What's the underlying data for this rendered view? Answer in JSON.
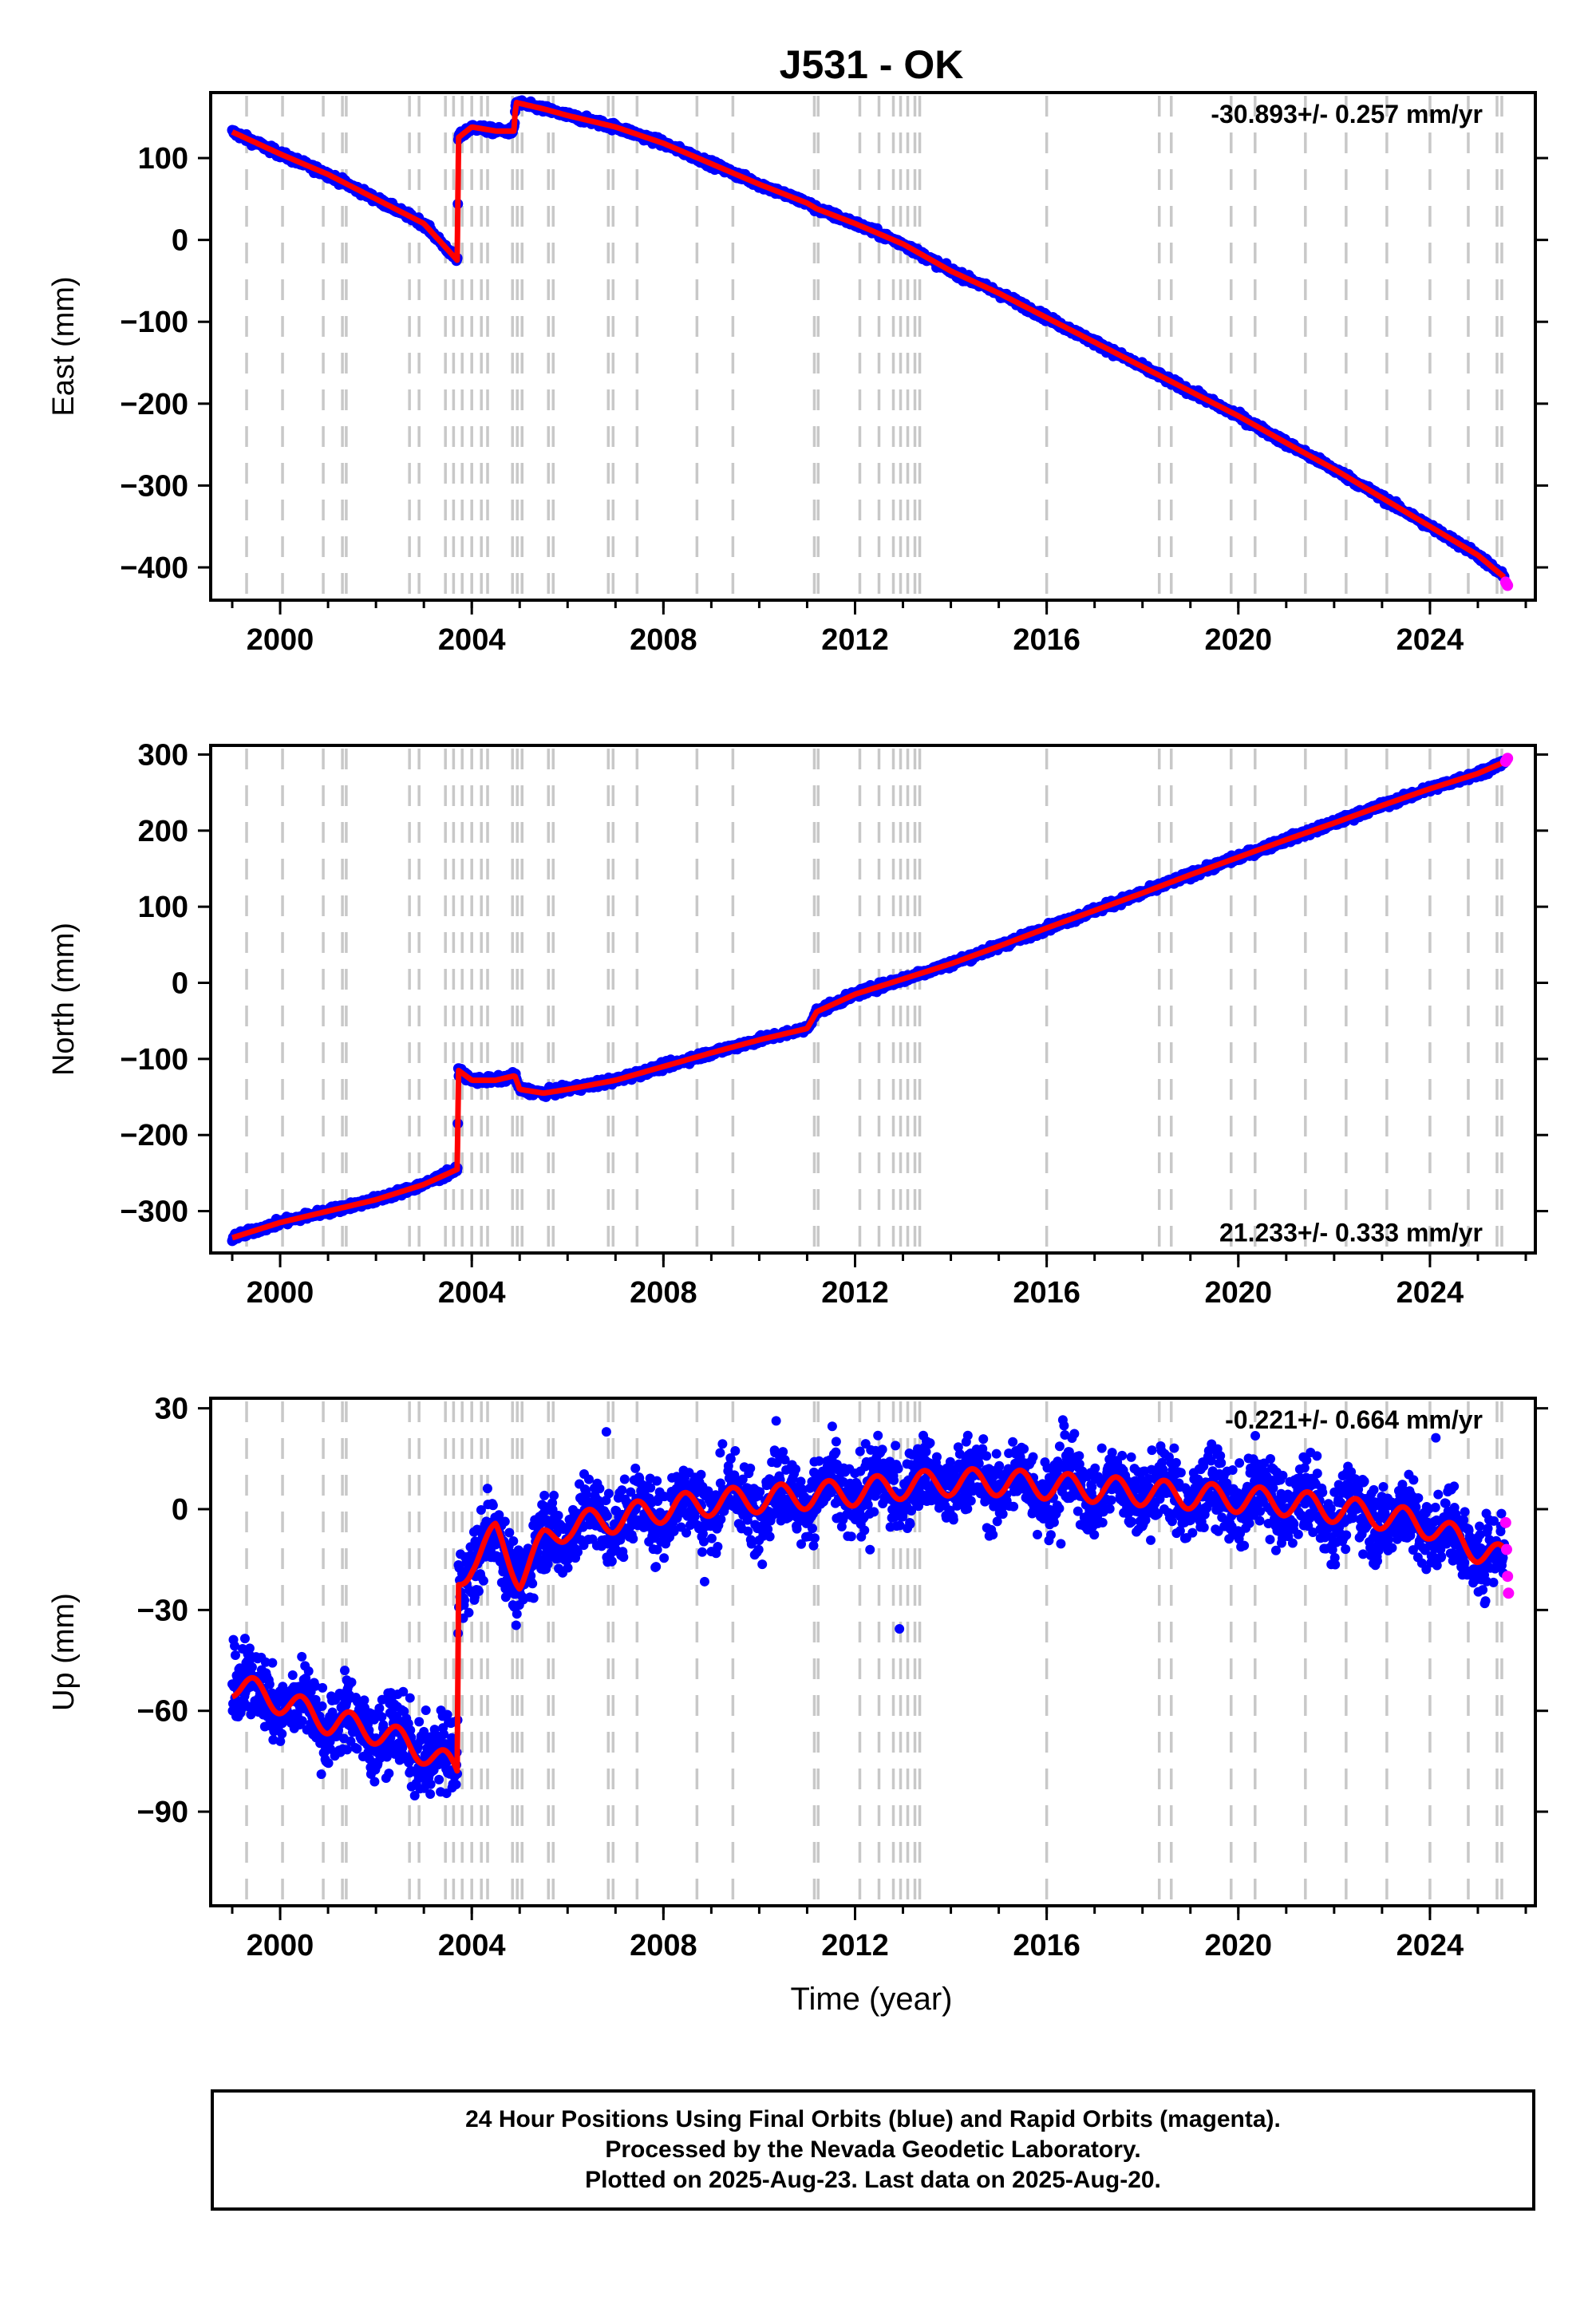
{
  "title": "J531 - OK",
  "xlabel": "Time (year)",
  "footer": {
    "line1": "24 Hour Positions Using Final Orbits (blue) and Rapid Orbits (magenta).",
    "line2": "Processed by the Nevada Geodetic Laboratory.",
    "line3": "Plotted on 2025-Aug-23. Last data on 2025-Aug-20."
  },
  "colors": {
    "final_orbits": "#0000ff",
    "rapid_orbits": "#ff00ff",
    "model_fit": "#ff0000",
    "event_lines": "#c8c8c8"
  },
  "chart_data": [
    {
      "type": "scatter",
      "component": "east",
      "ylabel": "East (mm)",
      "rate_label": "-30.893+/- 0.257 mm/yr",
      "xlim": [
        1998.55,
        2026.2
      ],
      "ylim": [
        -440,
        180
      ],
      "xticks": [
        2000,
        2004,
        2008,
        2012,
        2016,
        2020,
        2024
      ],
      "yticks": [
        -400,
        -300,
        -200,
        -100,
        0,
        100
      ],
      "grid": false,
      "series": [
        {
          "name": "Final Orbits (blue)",
          "x": [
            1999.0,
            2000.0,
            2001.0,
            2002.0,
            2003.0,
            2003.7,
            2003.72,
            2004.0,
            2004.5,
            2004.88,
            2004.92,
            2005.5,
            2006.0,
            2007.0,
            2008.0,
            2009.0,
            2010.0,
            2011.0,
            2011.2,
            2012.0,
            2013.0,
            2014.0,
            2015.0,
            2016.0,
            2017.0,
            2018.0,
            2019.0,
            2020.0,
            2021.0,
            2022.0,
            2023.0,
            2024.0,
            2025.0,
            2025.55
          ],
          "y": [
            132,
            105,
            80,
            50,
            20,
            -25,
            125,
            138,
            133,
            133,
            168,
            160,
            152,
            138,
            118,
            93,
            68,
            45,
            38,
            20,
            -5,
            -38,
            -65,
            -95,
            -125,
            -155,
            -185,
            -215,
            -248,
            -280,
            -315,
            -350,
            -385,
            -412
          ]
        },
        {
          "name": "Rapid Orbits (magenta)",
          "x": [
            2025.58,
            2025.6,
            2025.62
          ],
          "y": [
            -418,
            -420,
            -422
          ]
        }
      ]
    },
    {
      "type": "scatter",
      "component": "north",
      "ylabel": "North (mm)",
      "rate_label": "21.233+/- 0.333 mm/yr",
      "xlim": [
        1998.55,
        2026.2
      ],
      "ylim": [
        -355,
        312
      ],
      "xticks": [
        2000,
        2004,
        2008,
        2012,
        2016,
        2020,
        2024
      ],
      "yticks": [
        -300,
        -200,
        -100,
        0,
        100,
        200,
        300
      ],
      "grid": false,
      "series": [
        {
          "name": "Final Orbits (blue)",
          "x": [
            1999.0,
            2000.0,
            2001.0,
            2002.0,
            2003.0,
            2003.7,
            2003.72,
            2004.0,
            2004.5,
            2004.9,
            2005.0,
            2005.5,
            2006.0,
            2007.0,
            2008.0,
            2009.0,
            2010.0,
            2011.0,
            2011.2,
            2012.0,
            2013.0,
            2014.0,
            2015.0,
            2016.0,
            2017.0,
            2018.0,
            2019.0,
            2020.0,
            2021.0,
            2022.0,
            2023.0,
            2024.0,
            2025.0,
            2025.55
          ],
          "y": [
            -335,
            -315,
            -300,
            -285,
            -265,
            -245,
            -115,
            -128,
            -128,
            -122,
            -140,
            -145,
            -140,
            -128,
            -110,
            -92,
            -75,
            -60,
            -38,
            -15,
            5,
            25,
            48,
            72,
            95,
            118,
            142,
            165,
            188,
            210,
            233,
            255,
            275,
            290
          ]
        },
        {
          "name": "Rapid Orbits (magenta)",
          "x": [
            2025.58,
            2025.6,
            2025.62
          ],
          "y": [
            291,
            293,
            295
          ]
        }
      ]
    },
    {
      "type": "scatter",
      "component": "up",
      "ylabel": "Up (mm)",
      "rate_label": "-0.221+/- 0.664 mm/yr",
      "xlim": [
        1998.55,
        2026.2
      ],
      "ylim": [
        -118,
        33
      ],
      "xticks": [
        2000,
        2004,
        2008,
        2012,
        2016,
        2020,
        2024
      ],
      "yticks": [
        -90,
        -60,
        -30,
        0,
        30
      ],
      "grid": false,
      "series": [
        {
          "name": "Final Orbits (blue)",
          "x": [
            1999.0,
            2000.0,
            2001.0,
            2002.0,
            2003.0,
            2003.7,
            2003.72,
            2004.0,
            2004.5,
            2005.0,
            2005.5,
            2006.0,
            2007.0,
            2008.0,
            2009.0,
            2010.0,
            2011.0,
            2012.0,
            2013.0,
            2014.0,
            2015.0,
            2016.0,
            2017.0,
            2018.0,
            2019.0,
            2020.0,
            2021.0,
            2022.0,
            2023.0,
            2024.0,
            2025.0,
            2025.55
          ],
          "y": [
            -52,
            -57,
            -63,
            -66,
            -72,
            -78,
            -22,
            -15,
            -8,
            -20,
            -10,
            -5,
            -3,
            0,
            2,
            3,
            4,
            5,
            7,
            8,
            8,
            7,
            6,
            5,
            4,
            3,
            2,
            0,
            -2,
            -5,
            -12,
            -15
          ]
        },
        {
          "name": "Rapid Orbits (magenta)",
          "x": [
            2025.58,
            2025.6,
            2025.62,
            2025.64
          ],
          "y": [
            -4,
            -12,
            -20,
            -25
          ]
        }
      ]
    }
  ],
  "event_lines": [
    1999.3,
    2000.05,
    2000.9,
    2001.3,
    2001.38,
    2002.7,
    2002.9,
    2003.45,
    2003.62,
    2003.8,
    2004.0,
    2004.2,
    2004.33,
    2004.85,
    2004.95,
    2005.05,
    2005.6,
    2005.7,
    2006.85,
    2006.95,
    2007.45,
    2008.7,
    2009.45,
    2011.15,
    2011.23,
    2012.1,
    2012.5,
    2012.8,
    2012.95,
    2013.1,
    2013.25,
    2013.35,
    2016.0,
    2018.35,
    2018.6,
    2019.85,
    2020.35,
    2021.4,
    2022.25,
    2023.1,
    2024.0,
    2024.8,
    2025.4,
    2025.5
  ]
}
